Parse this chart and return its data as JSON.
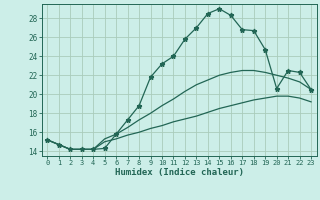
{
  "xlabel": "Humidex (Indice chaleur)",
  "xlim": [
    -0.5,
    23.5
  ],
  "ylim": [
    13.5,
    29.5
  ],
  "xtick_vals": [
    0,
    1,
    2,
    3,
    4,
    5,
    6,
    7,
    8,
    9,
    10,
    11,
    12,
    13,
    14,
    15,
    16,
    17,
    18,
    19,
    20,
    21,
    22,
    23
  ],
  "ytick_vals": [
    14,
    16,
    18,
    20,
    22,
    24,
    26,
    28
  ],
  "bg_color": "#cceee8",
  "grid_color": "#aaccbb",
  "line_color": "#226655",
  "line1_x": [
    0,
    1,
    2,
    3,
    4,
    5,
    6,
    7,
    8,
    9,
    10,
    11,
    12,
    13,
    14,
    15,
    16,
    17,
    18,
    19,
    20,
    21,
    22,
    23
  ],
  "line1_y": [
    15.2,
    14.7,
    14.2,
    14.2,
    14.2,
    14.3,
    15.8,
    17.3,
    18.8,
    21.8,
    23.2,
    24.0,
    25.8,
    27.0,
    28.5,
    29.0,
    28.3,
    26.8,
    26.7,
    24.7,
    20.6,
    22.5,
    22.3,
    20.5
  ],
  "line2_x": [
    0,
    1,
    2,
    3,
    4,
    5,
    6,
    7,
    8,
    9,
    10,
    11,
    12,
    13,
    14,
    15,
    16,
    17,
    18,
    19,
    20,
    21,
    22,
    23
  ],
  "line2_y": [
    15.2,
    14.7,
    14.2,
    14.2,
    14.2,
    15.3,
    15.8,
    16.5,
    17.3,
    18.0,
    18.8,
    19.5,
    20.3,
    21.0,
    21.5,
    22.0,
    22.3,
    22.5,
    22.5,
    22.3,
    22.0,
    21.7,
    21.3,
    20.5
  ],
  "line3_x": [
    0,
    1,
    2,
    3,
    4,
    5,
    6,
    7,
    8,
    9,
    10,
    11,
    12,
    13,
    14,
    15,
    16,
    17,
    18,
    19,
    20,
    21,
    22,
    23
  ],
  "line3_y": [
    15.2,
    14.7,
    14.2,
    14.2,
    14.2,
    15.0,
    15.3,
    15.7,
    16.0,
    16.4,
    16.7,
    17.1,
    17.4,
    17.7,
    18.1,
    18.5,
    18.8,
    19.1,
    19.4,
    19.6,
    19.8,
    19.8,
    19.6,
    19.2
  ]
}
